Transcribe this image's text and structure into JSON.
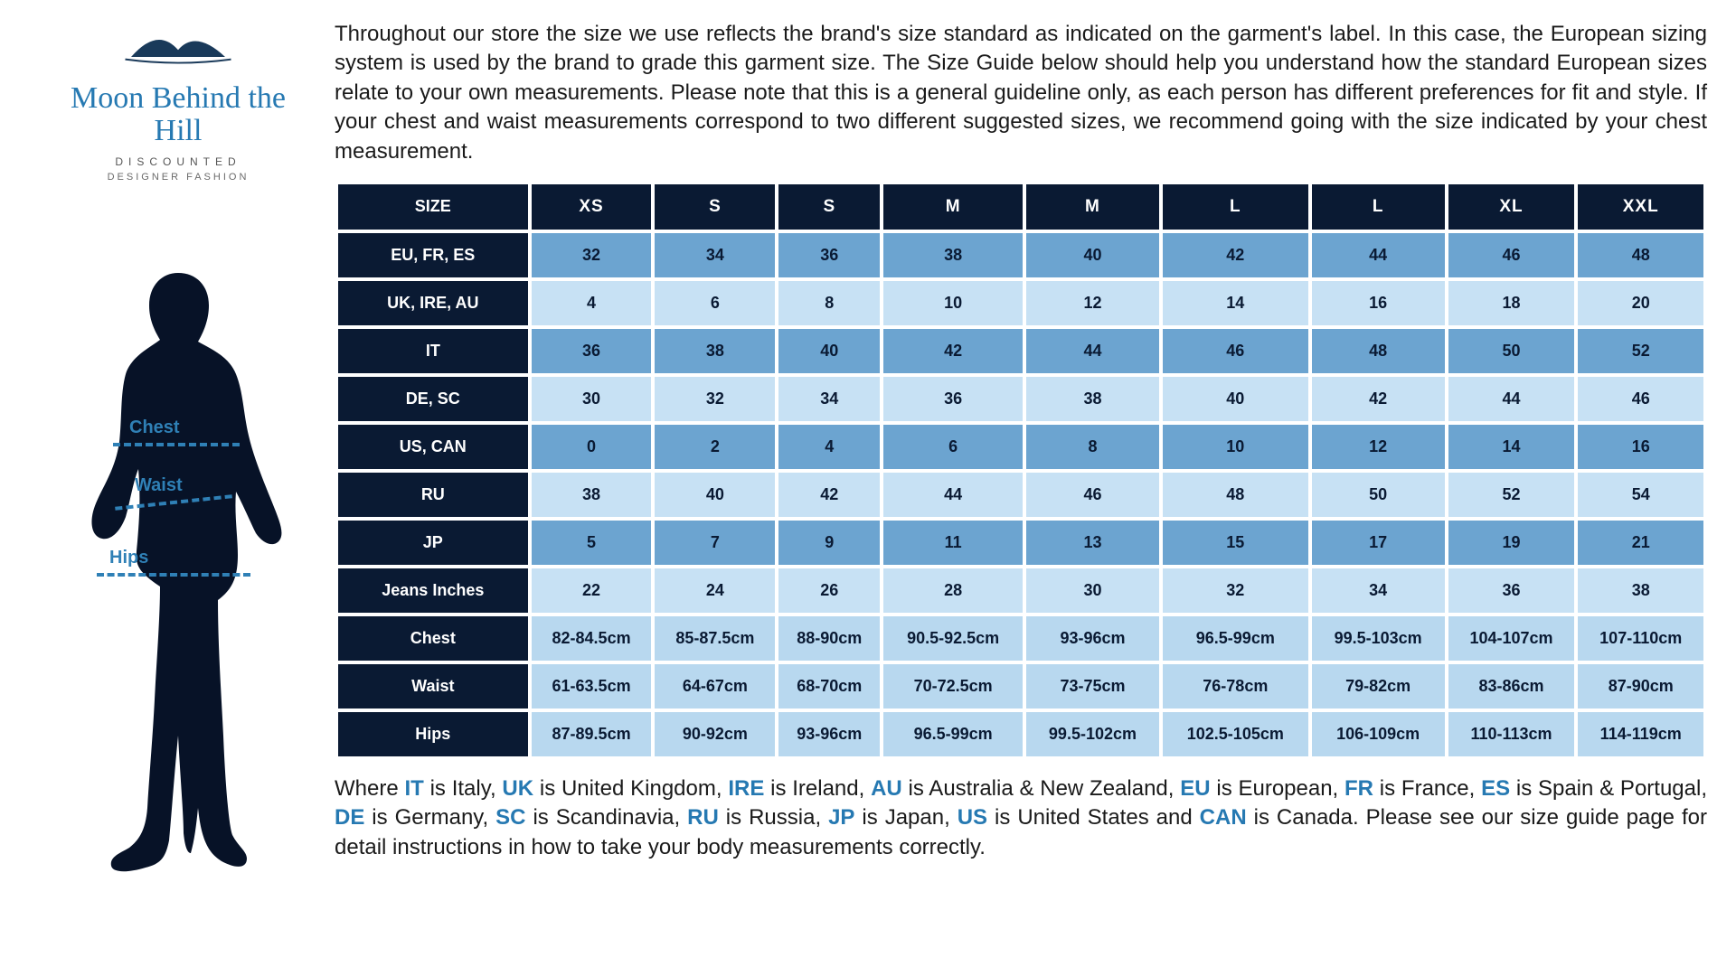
{
  "brand": {
    "name": "Moon Behind the Hill",
    "sub1": "DISCOUNTED",
    "sub2": "DESIGNER FASHION",
    "mountain_fill": "#1a3a5a",
    "mountain_stroke": "#1a3a5a",
    "underline": "#1a3a5a",
    "name_color": "#2679b2"
  },
  "silhouette": {
    "fill": "#071227",
    "labels": {
      "chest": "Chest",
      "waist": "Waist",
      "hips": "Hips"
    },
    "label_color": "#2f80b6",
    "dash_color": "#2f80b6"
  },
  "intro": "Throughout our store the size we use reflects the brand's size standard as indicated on the garment's label. In this case, the European sizing system is used by the brand to grade this garment size. The Size Guide below should help you understand how the standard European sizes relate to your own measurements. Please note that this is a general guideline only, as each person has different preferences for fit and style. If your chest and waist measurements correspond to two different suggested sizes, we recommend going with the size indicated by your chest measurement.",
  "table": {
    "header_bg": "#0a1a33",
    "header_fg": "#ffffff",
    "row_colors": {
      "mid": "#6ca4d0",
      "light": "#c7e1f4",
      "meas": "#b8d8ef"
    },
    "size_header": "SIZE",
    "columns": [
      "XS",
      "S",
      "S",
      "M",
      "M",
      "L",
      "L",
      "XL",
      "XXL"
    ],
    "rows": [
      {
        "label": "EU, FR, ES",
        "shade": "mid",
        "vals": [
          "32",
          "34",
          "36",
          "38",
          "40",
          "42",
          "44",
          "46",
          "48"
        ]
      },
      {
        "label": "UK, IRE, AU",
        "shade": "light",
        "vals": [
          "4",
          "6",
          "8",
          "10",
          "12",
          "14",
          "16",
          "18",
          "20"
        ]
      },
      {
        "label": "IT",
        "shade": "mid",
        "vals": [
          "36",
          "38",
          "40",
          "42",
          "44",
          "46",
          "48",
          "50",
          "52"
        ]
      },
      {
        "label": "DE, SC",
        "shade": "light",
        "vals": [
          "30",
          "32",
          "34",
          "36",
          "38",
          "40",
          "42",
          "44",
          "46"
        ]
      },
      {
        "label": "US, CAN",
        "shade": "mid",
        "vals": [
          "0",
          "2",
          "4",
          "6",
          "8",
          "10",
          "12",
          "14",
          "16"
        ]
      },
      {
        "label": "RU",
        "shade": "light",
        "vals": [
          "38",
          "40",
          "42",
          "44",
          "46",
          "48",
          "50",
          "52",
          "54"
        ]
      },
      {
        "label": "JP",
        "shade": "mid",
        "vals": [
          "5",
          "7",
          "9",
          "11",
          "13",
          "15",
          "17",
          "19",
          "21"
        ]
      },
      {
        "label": "Jeans Inches",
        "shade": "light",
        "vals": [
          "22",
          "24",
          "26",
          "28",
          "30",
          "32",
          "34",
          "36",
          "38"
        ]
      },
      {
        "label": "Chest",
        "shade": "meas",
        "vals": [
          "82-84.5cm",
          "85-87.5cm",
          "88-90cm",
          "90.5-92.5cm",
          "93-96cm",
          "96.5-99cm",
          "99.5-103cm",
          "104-107cm",
          "107-110cm"
        ]
      },
      {
        "label": "Waist",
        "shade": "meas",
        "vals": [
          "61-63.5cm",
          "64-67cm",
          "68-70cm",
          "70-72.5cm",
          "73-75cm",
          "76-78cm",
          "79-82cm",
          "83-86cm",
          "87-90cm"
        ]
      },
      {
        "label": "Hips",
        "shade": "meas",
        "vals": [
          "87-89.5cm",
          "90-92cm",
          "93-96cm",
          "96.5-99cm",
          "99.5-102cm",
          "102.5-105cm",
          "106-109cm",
          "110-113cm",
          "114-119cm"
        ]
      }
    ]
  },
  "legend": {
    "prefix": "Where ",
    "items": [
      {
        "abbr": "IT",
        "text": " is Italy, "
      },
      {
        "abbr": "UK",
        "text": " is United Kingdom, "
      },
      {
        "abbr": "IRE",
        "text": " is Ireland, "
      },
      {
        "abbr": "AU",
        "text": " is Australia & New Zealand, "
      },
      {
        "abbr": "EU",
        "text": " is European, "
      },
      {
        "abbr": "FR",
        "text": " is France, "
      },
      {
        "abbr": "ES",
        "text": " is Spain & Portugal, "
      },
      {
        "abbr": "DE",
        "text": " is Germany, "
      },
      {
        "abbr": "SC",
        "text": " is Scandinavia, "
      },
      {
        "abbr": "RU",
        "text": " is Russia, "
      },
      {
        "abbr": "JP",
        "text": " is Japan, "
      },
      {
        "abbr": "US",
        "text": " is United States and "
      },
      {
        "abbr": "CAN",
        "text": " is Canada. "
      }
    ],
    "suffix": "Please see our size guide page for detail instructions in how to take your body measurements correctly."
  }
}
